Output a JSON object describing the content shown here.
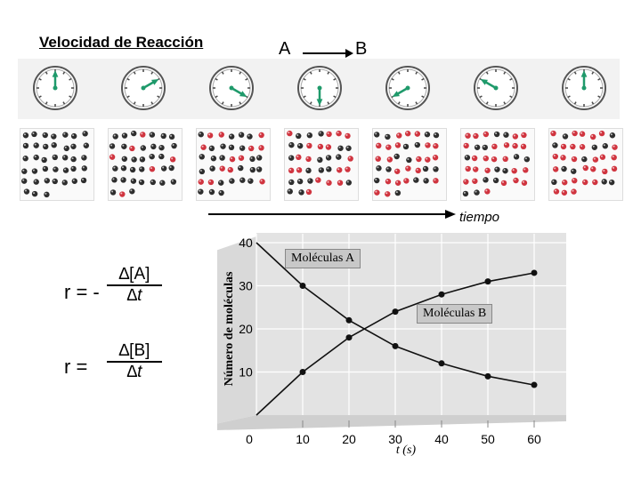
{
  "title": "Velocidad de Reacción",
  "reaction": {
    "reactant": "A",
    "product": "B"
  },
  "time_label": "tiempo",
  "snapshots": [
    {
      "red_count": 0,
      "hand_angle_deg": 0
    },
    {
      "red_count": 6,
      "hand_angle_deg": 60
    },
    {
      "red_count": 13,
      "hand_angle_deg": 120
    },
    {
      "red_count": 18,
      "hand_angle_deg": 180
    },
    {
      "red_count": 22,
      "hand_angle_deg": 240
    },
    {
      "red_count": 25,
      "hand_angle_deg": 300
    },
    {
      "red_count": 27,
      "hand_angle_deg": 360
    }
  ],
  "equations": {
    "rate_a_prefix": "r = -",
    "rate_a_num": "∆[A]",
    "rate_a_den": "∆t",
    "rate_b_prefix": "r =",
    "rate_b_num": "∆[B]",
    "rate_b_den": "∆t"
  },
  "chart_data": {
    "type": "line",
    "ylabel": "Número de moléculas",
    "xlabel": "t (s)",
    "x_ticks": [
      0,
      10,
      20,
      30,
      40,
      50,
      60
    ],
    "y_ticks": [
      10,
      20,
      30,
      40
    ],
    "xlim": [
      0,
      60
    ],
    "ylim": [
      0,
      40
    ],
    "series": [
      {
        "name": "Moléculas A",
        "x": [
          0,
          10,
          20,
          30,
          40,
          50,
          60
        ],
        "y": [
          40,
          30,
          22,
          16,
          12,
          9,
          7
        ]
      },
      {
        "name": "Moléculas B",
        "x": [
          0,
          10,
          20,
          30,
          40,
          50,
          60
        ],
        "y": [
          0,
          10,
          18,
          24,
          28,
          31,
          33
        ]
      }
    ]
  },
  "colors": {
    "red": "#d0343f",
    "dark": "#2e2e2e",
    "clock_hand": "#1f9a6b",
    "chart_bg": "#e3e3e3"
  }
}
